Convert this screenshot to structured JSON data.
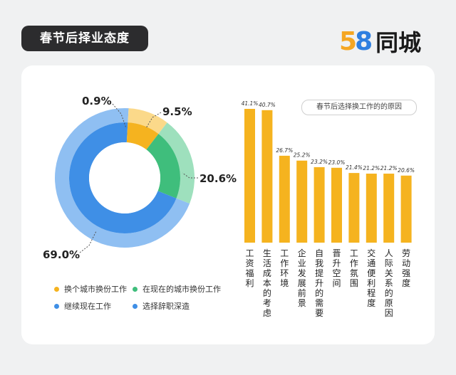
{
  "header": {
    "title": "春节后择业态度",
    "logo_number_5": "5",
    "logo_number_8": "8",
    "logo_name": "同城"
  },
  "colors": {
    "yellow": "#f5b31f",
    "yellow_light": "#fbd98a",
    "green": "#3fbe7c",
    "green_light": "#9ee0bd",
    "blue": "#3f8fe6",
    "blue_light": "#8fbff2",
    "bar": "#f5b31f"
  },
  "chart_data": [
    {
      "type": "pie",
      "style": "donut",
      "title": "春节后择业态度",
      "slices": [
        {
          "label": "选择辞职深造",
          "value": 0.9,
          "value_label": "0.9%"
        },
        {
          "label": "换个城市换份工作",
          "value": 9.5,
          "value_label": "9.5%"
        },
        {
          "label": "在现在的城市换份工作",
          "value": 20.6,
          "value_label": "20.6%"
        },
        {
          "label": "继续现在工作",
          "value": 69.0,
          "value_label": "69.0%"
        }
      ],
      "legend": [
        {
          "label": "换个城市换份工作",
          "color": "yellow"
        },
        {
          "label": "在现在的城市换份工作",
          "color": "green"
        },
        {
          "label": "继续现在工作",
          "color": "blue"
        },
        {
          "label": "选择辞职深造",
          "color": "blue"
        }
      ]
    },
    {
      "type": "bar",
      "title": "春节后选择换工作的的原因",
      "categories": [
        "工资福利",
        "生活成本的考虑",
        "工作环境",
        "企业发展前景",
        "自我提升的需要",
        "晋升空间",
        "工作氛围",
        "交通便利程度",
        "人际关系的原因",
        "劳动强度"
      ],
      "values": [
        41.1,
        40.7,
        26.7,
        25.2,
        23.2,
        23.0,
        21.4,
        21.2,
        21.2,
        20.6
      ],
      "value_labels": [
        "41.1%",
        "40.7%",
        "26.7%",
        "25.2%",
        "23.2%",
        "23.0%",
        "21.4%",
        "21.2%",
        "21.2%",
        "20.6%"
      ],
      "ylim": [
        0,
        45
      ]
    }
  ]
}
